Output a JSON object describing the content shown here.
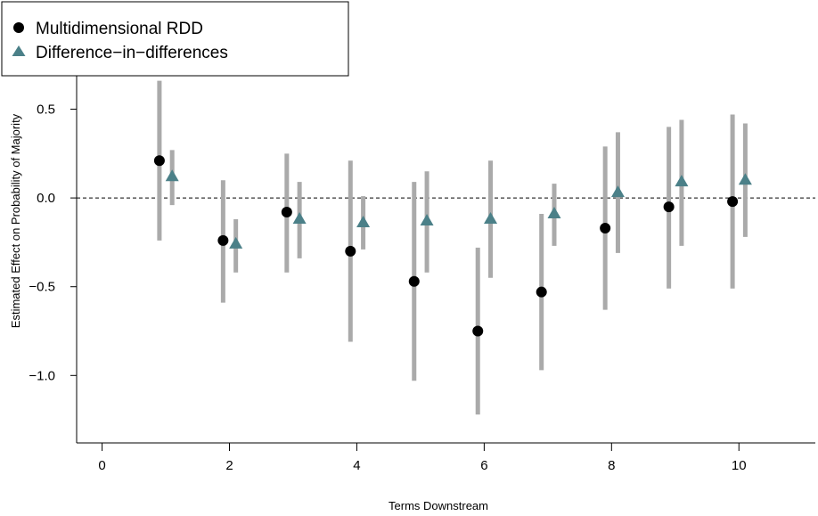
{
  "chart_data": {
    "type": "scatter",
    "xlabel": "Terms Downstream",
    "ylabel": "Estimated Effect on Probability of Majority",
    "xlim": [
      -0.4,
      11.2
    ],
    "ylim": [
      -1.38,
      1.1
    ],
    "x_ticks": [
      0,
      2,
      4,
      6,
      8,
      10
    ],
    "y_ticks": [
      -1.0,
      -0.5,
      0.0,
      0.5,
      1.0
    ],
    "x_tick_labels": [
      "0",
      "2",
      "4",
      "6",
      "8",
      "10"
    ],
    "y_tick_labels": [
      "−1.0",
      "−0.5",
      "0.0",
      "0.5",
      "1.0"
    ],
    "reference_line": {
      "y": 0,
      "style": "dashed"
    },
    "legend_position": "top-left",
    "series": [
      {
        "name": "Multidimensional RDD",
        "marker": "circle",
        "color": "#000000",
        "x": [
          0.9,
          1.9,
          2.9,
          3.9,
          4.9,
          5.9,
          6.9,
          7.9,
          8.9,
          9.9
        ],
        "y": [
          0.21,
          -0.24,
          -0.08,
          -0.3,
          -0.47,
          -0.75,
          -0.53,
          -0.17,
          -0.05,
          -0.02
        ],
        "lower": [
          -0.24,
          -0.59,
          -0.42,
          -0.81,
          -1.03,
          -1.22,
          -0.97,
          -0.63,
          -0.51,
          -0.51
        ],
        "upper": [
          0.66,
          0.1,
          0.25,
          0.21,
          0.09,
          -0.28,
          -0.09,
          0.29,
          0.4,
          0.47
        ]
      },
      {
        "name": "Difference−in−differences",
        "marker": "triangle",
        "color": "#4b8088",
        "x": [
          1.1,
          2.1,
          3.1,
          4.1,
          5.1,
          6.1,
          7.1,
          8.1,
          9.1,
          10.1
        ],
        "y": [
          0.12,
          -0.26,
          -0.12,
          -0.14,
          -0.13,
          -0.12,
          -0.09,
          0.03,
          0.09,
          0.1
        ],
        "lower": [
          -0.04,
          -0.42,
          -0.34,
          -0.29,
          -0.42,
          -0.45,
          -0.27,
          -0.31,
          -0.27,
          -0.22
        ],
        "upper": [
          0.27,
          -0.12,
          0.09,
          0.01,
          0.15,
          0.21,
          0.08,
          0.37,
          0.44,
          0.42
        ]
      }
    ],
    "colors": {
      "error_bar": "#aaaaaa",
      "axis": "#000000",
      "reference_line": "#000000"
    }
  }
}
